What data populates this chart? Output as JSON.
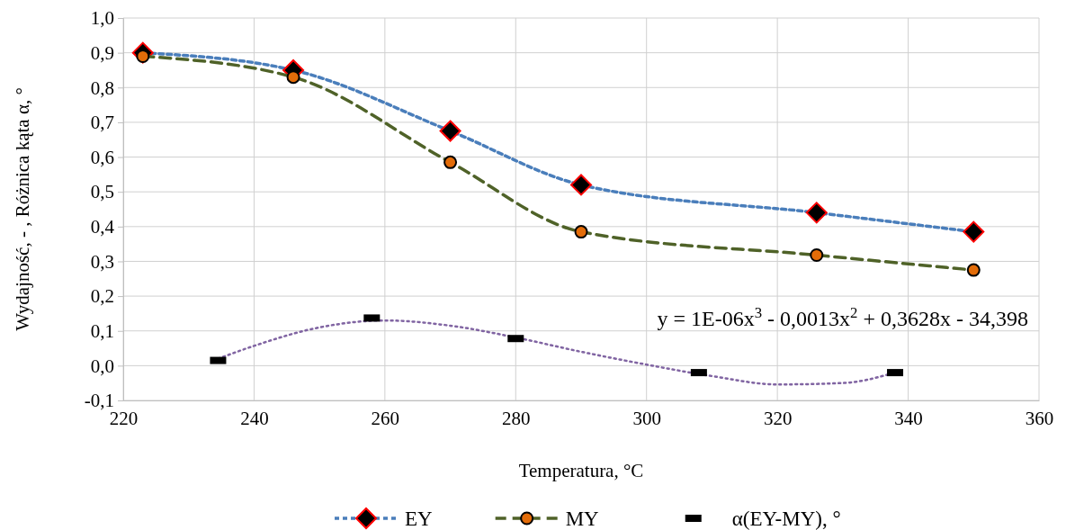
{
  "chart_data": {
    "type": "line",
    "xlabel": "Temperatura, °C",
    "ylabel": "Wydajność, - , Różnica kąta α, °",
    "xlim": [
      220,
      360
    ],
    "xticks": [
      220,
      240,
      260,
      280,
      300,
      320,
      340,
      360
    ],
    "ylim": [
      -0.1,
      1.0
    ],
    "yticks": [
      {
        "value": -0.1,
        "label": "-0,1"
      },
      {
        "value": 0,
        "label": "0,0"
      },
      {
        "value": 0.1,
        "label": "0,1"
      },
      {
        "value": 0.2,
        "label": "0,2"
      },
      {
        "value": 0.3,
        "label": "0,3"
      },
      {
        "value": 0.4,
        "label": "0,4"
      },
      {
        "value": 0.5,
        "label": "0,5"
      },
      {
        "value": 0.6,
        "label": "0,6"
      },
      {
        "value": 0.7,
        "label": "0,7"
      },
      {
        "value": 0.8,
        "label": "0,8"
      },
      {
        "value": 0.9,
        "label": "0,9"
      },
      {
        "value": 1.0,
        "label": "1,0"
      }
    ],
    "grid": true,
    "legend": "bottom",
    "series": [
      {
        "name": "EY",
        "color": "#4a7ebb",
        "marker": "diamond",
        "line_style": "dotted",
        "x": [
          223,
          246,
          270,
          290,
          326,
          350
        ],
        "values": [
          0.9,
          0.85,
          0.675,
          0.52,
          0.44,
          0.385
        ]
      },
      {
        "name": "MY",
        "color": "#4f6228",
        "marker": "circle",
        "line_style": "dashed",
        "x": [
          223,
          246,
          270,
          290,
          326,
          350
        ],
        "values": [
          0.89,
          0.83,
          0.585,
          0.385,
          0.318,
          0.275
        ]
      },
      {
        "name": "α(EY-MY), °",
        "type": "scatter",
        "color": "#000000",
        "marker": "square",
        "x": [
          234.5,
          258,
          280,
          308,
          338
        ],
        "values": [
          0.015,
          0.137,
          0.078,
          -0.02,
          -0.02
        ]
      },
      {
        "color": "#8064a2",
        "marker": "none",
        "line_style": "dotted",
        "x": [
          234.5,
          240,
          250,
          260,
          270,
          280,
          290,
          300,
          310,
          320,
          330,
          338
        ],
        "values": [
          0.02,
          0.057,
          0.11,
          0.13,
          0.115,
          0.081,
          0.04,
          0.003,
          -0.03,
          -0.054,
          -0.05,
          -0.02
        ]
      }
    ],
    "annotations": [
      "y = 1E-06x$^{3}$ - 0,0013x$^{2}$ + 0,3628x - 34,398"
    ]
  }
}
